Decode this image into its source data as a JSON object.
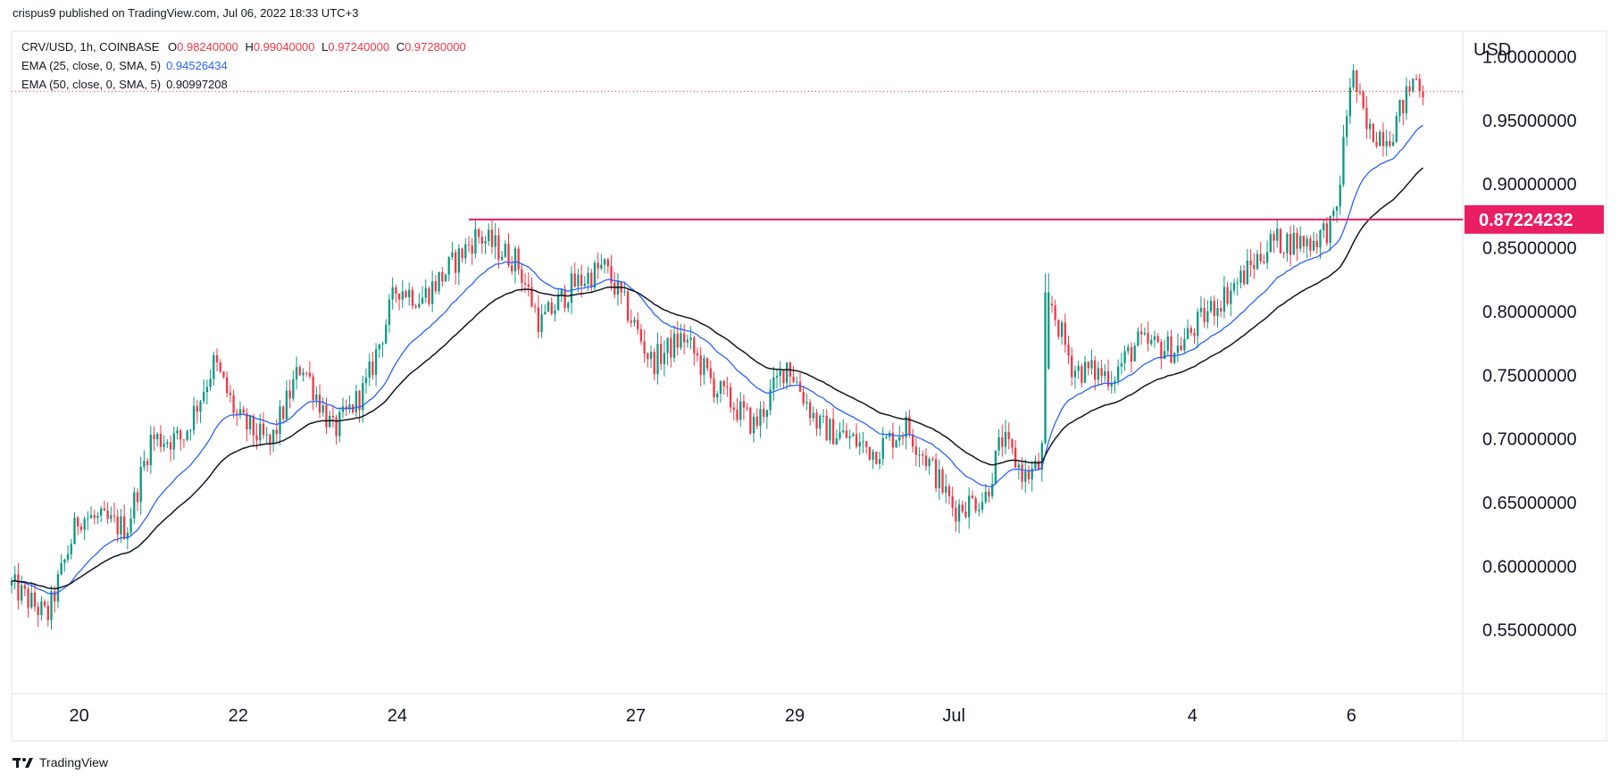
{
  "header": {
    "published": "crispus9 published on TradingView.com, Jul 06, 2022 18:33 UTC+3"
  },
  "legend": {
    "symbol": "CRV/USD, 1h, COINBASE",
    "open_label": "O",
    "open": "0.98240000",
    "high_label": "H",
    "high": "0.99040000",
    "low_label": "L",
    "low": "0.97240000",
    "close_label": "C",
    "close": "0.97280000",
    "ema25_label": "EMA (25, close, 0, SMA, 5)",
    "ema25": "0.94526434",
    "ema50_label": "EMA (50, close, 0, SMA, 5)",
    "ema50": "0.90997208"
  },
  "footer": {
    "brand": "TradingView"
  },
  "chart_data": {
    "type": "candlestick",
    "currency": "USD",
    "ylim": [
      0.5,
      1.02
    ],
    "y_ticks": [
      {
        "v": 1.0,
        "label": "1.00000000"
      },
      {
        "v": 0.95,
        "label": "0.95000000"
      },
      {
        "v": 0.9,
        "label": "0.90000000"
      },
      {
        "v": 0.85,
        "label": "0.85000000"
      },
      {
        "v": 0.8,
        "label": "0.80000000"
      },
      {
        "v": 0.75,
        "label": "0.75000000"
      },
      {
        "v": 0.7,
        "label": "0.70000000"
      },
      {
        "v": 0.65,
        "label": "0.65000000"
      },
      {
        "v": 0.6,
        "label": "0.60000000"
      },
      {
        "v": 0.55,
        "label": "0.55000000"
      }
    ],
    "x_ticks": [
      "20",
      "22",
      "24",
      "27",
      "29",
      "Jul",
      "4",
      "6"
    ],
    "x_tick_days": [
      20,
      22,
      24,
      27,
      29,
      31,
      34,
      36
    ],
    "x_day_range": [
      19.15,
      37.4
    ],
    "horizontal_line": {
      "value": 0.87224232,
      "label": "0.87224232",
      "color": "#e91e63",
      "start_day": 24.9
    },
    "last_price_line": {
      "value": 0.9728,
      "color": "#f23645"
    },
    "price_anchors": [
      [
        19.15,
        0.585
      ],
      [
        19.6,
        0.56
      ],
      [
        20.0,
        0.64
      ],
      [
        20.6,
        0.63
      ],
      [
        20.9,
        0.7
      ],
      [
        21.3,
        0.7
      ],
      [
        21.7,
        0.76
      ],
      [
        22.0,
        0.715
      ],
      [
        22.4,
        0.695
      ],
      [
        22.8,
        0.76
      ],
      [
        23.2,
        0.705
      ],
      [
        23.6,
        0.74
      ],
      [
        24.0,
        0.82
      ],
      [
        24.3,
        0.81
      ],
      [
        24.6,
        0.83
      ],
      [
        25.0,
        0.86
      ],
      [
        25.5,
        0.84
      ],
      [
        25.8,
        0.79
      ],
      [
        26.2,
        0.82
      ],
      [
        26.6,
        0.835
      ],
      [
        26.9,
        0.8
      ],
      [
        27.2,
        0.76
      ],
      [
        27.6,
        0.78
      ],
      [
        28.0,
        0.74
      ],
      [
        28.5,
        0.71
      ],
      [
        28.9,
        0.76
      ],
      [
        29.3,
        0.71
      ],
      [
        29.7,
        0.7
      ],
      [
        30.0,
        0.69
      ],
      [
        30.4,
        0.71
      ],
      [
        30.7,
        0.68
      ],
      [
        31.0,
        0.645
      ],
      [
        31.4,
        0.655
      ],
      [
        31.6,
        0.7
      ],
      [
        31.9,
        0.67
      ],
      [
        32.1,
        0.68
      ],
      [
        32.2,
        0.81
      ],
      [
        32.5,
        0.755
      ],
      [
        33.0,
        0.75
      ],
      [
        33.3,
        0.775
      ],
      [
        33.8,
        0.77
      ],
      [
        34.2,
        0.8
      ],
      [
        34.6,
        0.825
      ],
      [
        35.0,
        0.855
      ],
      [
        35.5,
        0.855
      ],
      [
        35.8,
        0.87
      ],
      [
        36.0,
        0.99
      ],
      [
        36.2,
        0.94
      ],
      [
        36.5,
        0.94
      ],
      [
        36.8,
        0.985
      ],
      [
        36.9,
        0.975
      ]
    ]
  }
}
